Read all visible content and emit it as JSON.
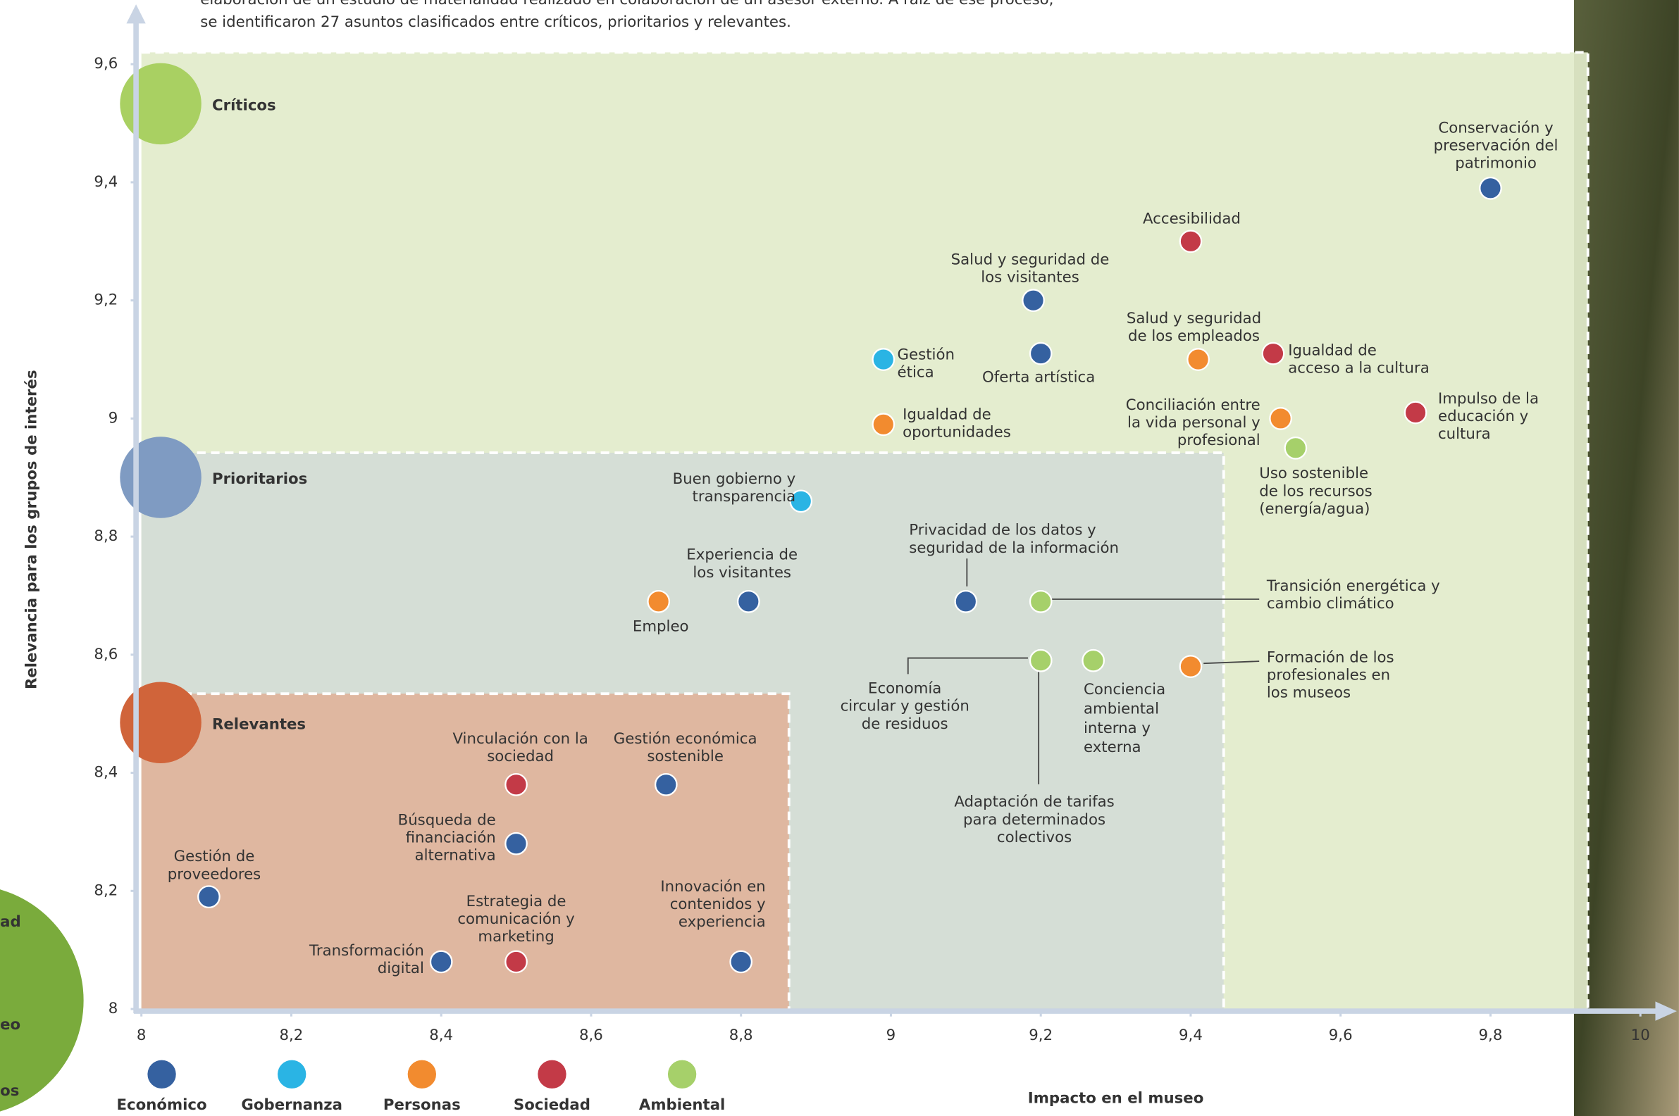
{
  "chart_data": {
    "type": "scatter",
    "subtitle": [
      "elaboración de un estudio de materialidad realizado en colaboración de un asesor externo. A raíz de ese proceso,",
      "se identificaron 27 asuntos clasificados entre críticos, prioritarios y relevantes."
    ],
    "xlabel": "Impacto en el museo",
    "ylabel": "Relevancia para los grupos de interés",
    "xlim": [
      8,
      10
    ],
    "ylim": [
      8,
      9.6
    ],
    "xticks": [
      8,
      {
        "value": 8.2,
        "label": "8,2"
      },
      {
        "value": 8.4,
        "label": "8,4"
      },
      {
        "value": 8.6,
        "label": "8,6"
      },
      {
        "value": 8.8,
        "label": "8,8"
      },
      9,
      {
        "value": 9.2,
        "label": "9,2"
      },
      {
        "value": 9.4,
        "label": "9,4"
      },
      {
        "value": 9.6,
        "label": "9,6"
      },
      {
        "value": 9.8,
        "label": "9,8"
      },
      10
    ],
    "yticks": [
      8,
      {
        "value": 8.2,
        "label": "8,2"
      },
      {
        "value": 8.4,
        "label": "8,4"
      },
      {
        "value": 8.6,
        "label": "8,6"
      },
      {
        "value": 8.8,
        "label": "8,8"
      },
      9,
      {
        "value": 9.2,
        "label": "9,2"
      },
      {
        "value": 9.4,
        "label": "9,4"
      },
      {
        "value": 9.6,
        "label": "9,6"
      }
    ],
    "zones": [
      {
        "name": "Críticos",
        "color": "#e2ebcb",
        "marker_color": "#a9d062",
        "text_color": "#6b8c3e",
        "xmax": 9.93,
        "ymax": 9.62
      },
      {
        "name": "Prioritarios",
        "color": "#d4dcd7",
        "marker_color": "#7f9bc2",
        "text_color": "#3b5c95",
        "xmax": 9.444,
        "ymax": 8.942
      },
      {
        "name": "Relevantes",
        "color": "#e0b39b",
        "marker_color": "#d0643a",
        "text_color": "#c3462b",
        "xmax": 8.864,
        "ymax": 8.534
      }
    ],
    "series": [
      {
        "name": "Económico",
        "color": "#3561a0",
        "x": [
          9.8,
          9.19,
          9.2,
          8.81,
          9.1,
          8.7,
          8.5,
          8.09,
          8.4,
          8.8
        ],
        "values": [
          9.39,
          9.2,
          9.11,
          8.69,
          8.69,
          8.38,
          8.28,
          8.19,
          8.08,
          8.08
        ],
        "labels": [
          "Conservación y\npreservación del\npatrimonio",
          "Salud y seguridad de\nlos visitantes",
          "Oferta artística",
          "Experiencia de\nlos visitantes",
          "Privacidad de los datos y\nseguridad de la información",
          "Gestión económica\nsostenible",
          "Búsqueda de\nfinanciación\nalternativa",
          "Gestión de\nproveedores",
          "Transformación\ndigital",
          "Innovación en\ncontenidos y\nexperiencia"
        ]
      },
      {
        "name": "Gobernanza",
        "color": "#2ab4e4",
        "x": [
          8.99,
          8.88
        ],
        "values": [
          9.1,
          8.86
        ],
        "labels": [
          "Gestión\nética",
          "Buen gobierno y\ntransparencia"
        ]
      },
      {
        "name": "Personas",
        "color": "#f28b2f",
        "x": [
          9.41,
          8.99,
          9.52,
          8.69,
          9.4
        ],
        "values": [
          9.1,
          8.99,
          9.0,
          8.69,
          8.58
        ],
        "labels": [
          "Salud y seguridad\nde los empleados",
          "Igualdad de\noportunidades",
          "Conciliación entre\nla vida personal y\nprofesional",
          "Empleo",
          "Formación de los\nprofesionales en\nlos museos"
        ]
      },
      {
        "name": "Sociedad",
        "color": "#c33a47",
        "x": [
          9.4,
          9.51,
          9.7,
          8.5,
          8.5
        ],
        "values": [
          9.3,
          9.11,
          9.01,
          8.38,
          8.08
        ],
        "labels": [
          "Accesibilidad",
          "Igualdad de\nacceso a la cultura",
          "Impulso de la\neducación y\ncultura",
          "Vinculación con la\nsociedad",
          "Estrategia de\ncomunicación y\nmarketing"
        ]
      },
      {
        "name": "Ambiental",
        "color": "#a6d06a",
        "x": [
          9.54,
          9.2,
          9.2,
          9.27,
          9.2
        ],
        "values": [
          8.95,
          8.69,
          8.59,
          8.59,
          8.59
        ],
        "labels": [
          "Uso sostenible\nde los recursos\n(energía/agua)",
          "Transición energética y\ncambio climático",
          "Economía\ncircular y gestión\nde residuos",
          "Conciencia\nambiental\ninterna y\nexterna",
          "Adaptación de tarifas\npara determinados\ncolectivos"
        ]
      }
    ],
    "side_fragments": [
      "ad",
      "eo",
      "os"
    ]
  }
}
